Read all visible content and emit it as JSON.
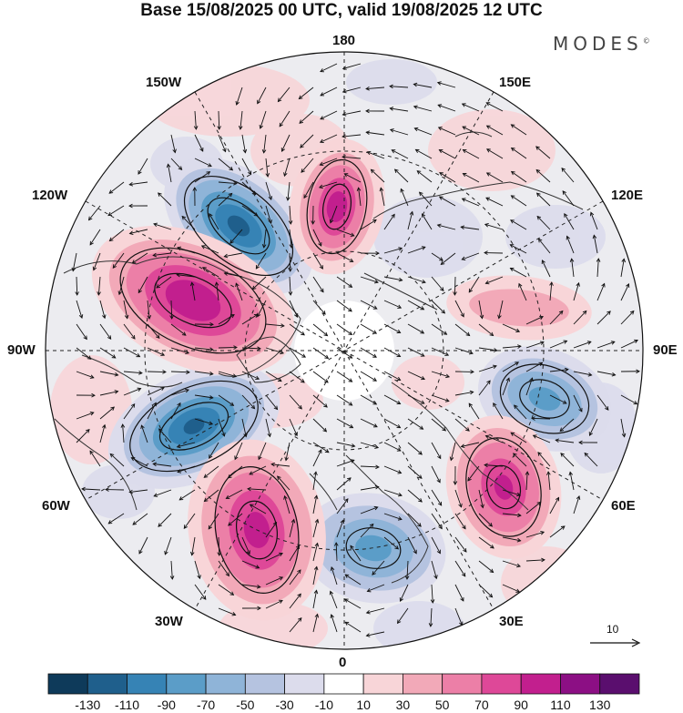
{
  "title": "Base 15/08/2025 00 UTC, valid 19/08/2025 12 UTC",
  "brand": {
    "text": "MODES",
    "mark": "©"
  },
  "longitude_labels": {
    "n180": "180",
    "e150": "150E",
    "e120": "120E",
    "e90": "90E",
    "e60": "60E",
    "e30": "30E",
    "s0": "0",
    "w30": "30W",
    "w60": "60W",
    "w90": "90W",
    "w120": "120W",
    "w150": "150W"
  },
  "reference_vector": {
    "label": "10",
    "icon": "arrow-icon"
  },
  "colorbar": {
    "colors": [
      "#0e3a5a",
      "#1f5f8c",
      "#3683b5",
      "#5b9dc8",
      "#8fb4d8",
      "#b5c3e0",
      "#dcdcec",
      "#ffffff",
      "#f8d5d8",
      "#f2a9b8",
      "#ec7fa7",
      "#de4898",
      "#c21f8e",
      "#8c0f84",
      "#5a0e6e"
    ],
    "ticks": [
      "-130",
      "-110",
      "-90",
      "-70",
      "-50",
      "-30",
      "-10",
      "10",
      "30",
      "50",
      "70",
      "90",
      "110",
      "130"
    ]
  },
  "anomaly_centers": [
    {
      "name": "low-pacific",
      "sign": "negative",
      "value": -100,
      "lon": -140,
      "lat": 55
    },
    {
      "name": "high-bering",
      "sign": "positive",
      "value": 110,
      "lon": 175,
      "lat": 60
    },
    {
      "name": "high-canada",
      "sign": "positive",
      "value": 110,
      "lon": -110,
      "lat": 55
    },
    {
      "name": "low-greenland-w",
      "sign": "negative",
      "value": -90,
      "lon": -70,
      "lat": 50
    },
    {
      "name": "high-atlantic",
      "sign": "positive",
      "value": 100,
      "lon": -40,
      "lat": 45
    },
    {
      "name": "low-europe",
      "sign": "negative",
      "value": -60,
      "lon": 10,
      "lat": 60
    },
    {
      "name": "high-asia-w",
      "sign": "positive",
      "value": 90,
      "lon": 50,
      "lat": 45
    },
    {
      "name": "low-siberia",
      "sign": "negative",
      "value": -50,
      "lon": 80,
      "lat": 50
    },
    {
      "name": "high-siberia-e",
      "sign": "positive",
      "value": 30,
      "lon": 105,
      "lat": 55
    }
  ]
}
